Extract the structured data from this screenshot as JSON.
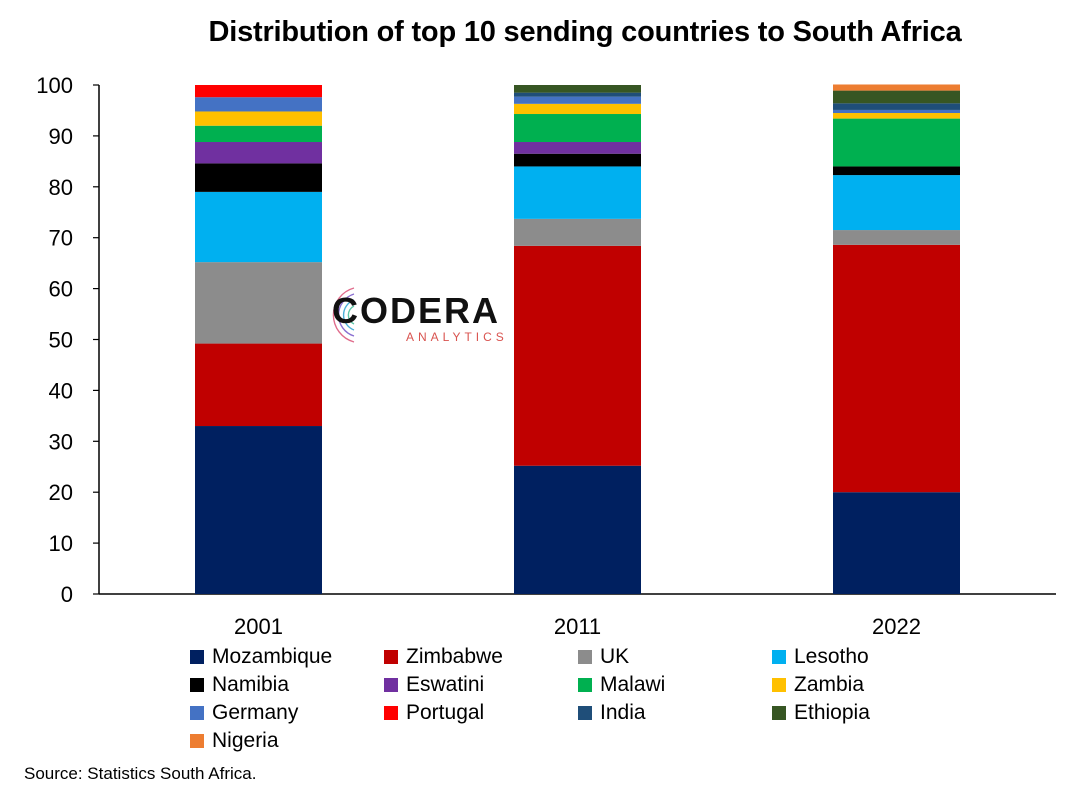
{
  "chart_data": {
    "type": "bar",
    "stacked": true,
    "title": "Distribution of top 10 sending countries to South Africa",
    "xlabel": "",
    "ylabel": "",
    "ylim": [
      0,
      100
    ],
    "yticks": [
      0,
      10,
      20,
      30,
      40,
      50,
      60,
      70,
      80,
      90,
      100
    ],
    "categories": [
      "2001",
      "2011",
      "2022"
    ],
    "legend_position": "bottom",
    "series": [
      {
        "name": "Mozambique",
        "color": "#002060",
        "values": [
          33.0,
          25.2,
          20.0
        ]
      },
      {
        "name": "Zimbabwe",
        "color": "#C00000",
        "values": [
          16.2,
          43.2,
          48.6
        ]
      },
      {
        "name": "UK",
        "color": "#8C8C8C",
        "values": [
          16.0,
          5.3,
          2.9
        ]
      },
      {
        "name": "Lesotho",
        "color": "#00B0F0",
        "values": [
          13.8,
          10.3,
          10.8
        ]
      },
      {
        "name": "Namibia",
        "color": "#000000",
        "values": [
          5.6,
          2.5,
          1.7
        ]
      },
      {
        "name": "Eswatini",
        "color": "#7030A0",
        "values": [
          4.2,
          2.3,
          0.0
        ]
      },
      {
        "name": "Malawi",
        "color": "#00B050",
        "values": [
          3.2,
          5.5,
          9.4
        ]
      },
      {
        "name": "Zambia",
        "color": "#FFC000",
        "values": [
          2.8,
          2.0,
          1.1
        ]
      },
      {
        "name": "Germany",
        "color": "#4472C4",
        "values": [
          2.8,
          1.4,
          0.6
        ]
      },
      {
        "name": "Portugal",
        "color": "#FF0000",
        "values": [
          2.4,
          0.0,
          0.0
        ]
      },
      {
        "name": "India",
        "color": "#1F4E79",
        "values": [
          0.0,
          0.8,
          1.3
        ]
      },
      {
        "name": "Ethiopia",
        "color": "#375623",
        "values": [
          0.0,
          1.5,
          2.5
        ]
      },
      {
        "name": "Nigeria",
        "color": "#ED7D31",
        "values": [
          0.0,
          0.0,
          1.2
        ]
      }
    ]
  },
  "watermark": {
    "name": "CODERA",
    "subtitle": "ANALYTICS"
  },
  "source": "Source: Statistics South Africa."
}
